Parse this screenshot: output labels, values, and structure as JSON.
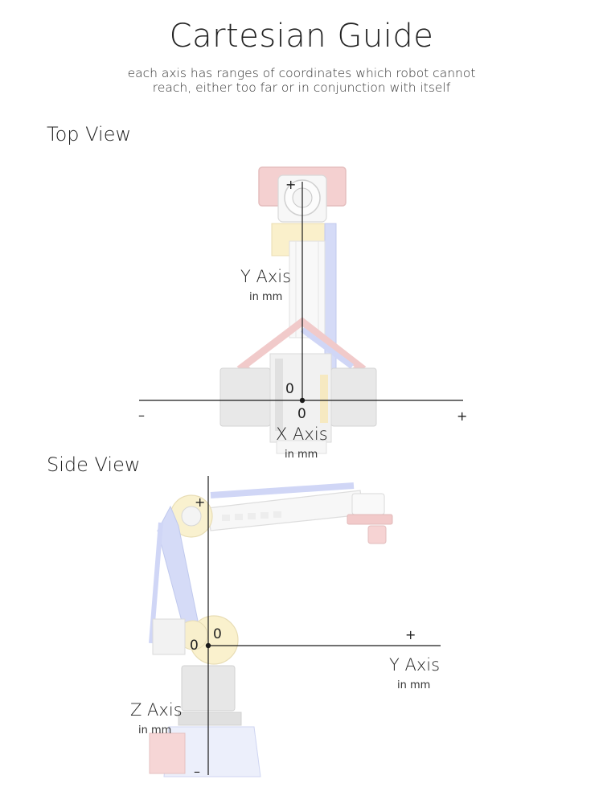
{
  "title": "Cartesian Guide",
  "subtitle_lines": [
    "each axis has ranges of coordinates which robot cannot",
    "reach, either too far or in conjunction with itself"
  ],
  "top_view": {
    "label": "Top View",
    "y_axis": {
      "name": "Y Axis",
      "unit": "in mm",
      "plus": "+",
      "zero": "0"
    },
    "x_axis": {
      "name": "X Axis",
      "unit": "in mm",
      "plus": "+",
      "minus": "–",
      "zero": "0"
    }
  },
  "side_view": {
    "label": "Side View",
    "z_axis": {
      "name": "Z Axis",
      "unit": "in mm",
      "plus": "+",
      "minus": "–",
      "zero": "0"
    },
    "y_axis": {
      "name": "Y Axis",
      "unit": "in mm",
      "plus": "+",
      "zero": "0"
    }
  },
  "colors": {
    "axis": "#1a1a1a",
    "robot_red": "#e8a0a0",
    "robot_blue": "#a8b4f0",
    "robot_yellow": "#f3e2a0",
    "robot_grey": "#dcdcdc"
  }
}
